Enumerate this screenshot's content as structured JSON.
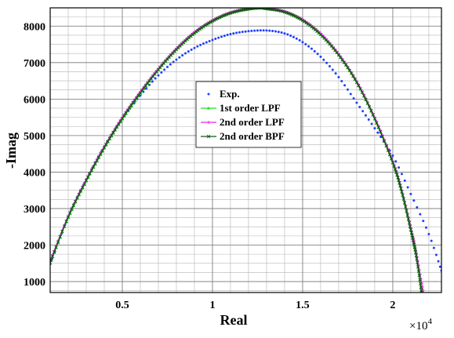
{
  "chart_data": {
    "type": "line",
    "xlabel": "Real",
    "ylabel": "-Imag",
    "x_multiplier_label": "×10",
    "x_multiplier_exponent": "4",
    "xlim": [
      1000,
      22700
    ],
    "ylim": [
      700,
      8500
    ],
    "x_ticks": [
      5000,
      10000,
      15000,
      20000
    ],
    "x_tick_labels": [
      "0.5",
      "1",
      "1.5",
      "2"
    ],
    "x_minor_step": 1000,
    "y_ticks": [
      1000,
      2000,
      3000,
      4000,
      5000,
      6000,
      7000,
      8000
    ],
    "y_tick_labels": [
      "1000",
      "2000",
      "3000",
      "4000",
      "5000",
      "6000",
      "7000",
      "8000"
    ],
    "y_minor_step": 250,
    "grid": true,
    "legend_position": "center",
    "series": [
      {
        "name": "Exp.",
        "color": "#1f3fff",
        "marker": "dot",
        "x": [
          1000,
          2000,
          3000,
          4000,
          5000,
          6000,
          7000,
          8000,
          9000,
          10000,
          11000,
          12000,
          13000,
          14000,
          15000,
          16000,
          17000,
          18000,
          19000,
          20000,
          21000,
          22000,
          22700
        ],
        "y": [
          1480,
          2770,
          3800,
          4700,
          5460,
          6100,
          6650,
          7080,
          7400,
          7620,
          7780,
          7860,
          7880,
          7800,
          7560,
          7160,
          6600,
          5900,
          5200,
          4450,
          3400,
          2300,
          1300
        ]
      },
      {
        "name": "1st order LPF",
        "color": "#22dd22",
        "marker": "triangle",
        "x": [
          1000,
          2000,
          3000,
          4000,
          5000,
          6000,
          7000,
          8000,
          9000,
          10000,
          11000,
          12000,
          12700,
          13000,
          14000,
          15000,
          16000,
          17000,
          18000,
          19000,
          20000,
          20500,
          21000,
          21300,
          21600
        ],
        "y": [
          1500,
          2750,
          3750,
          4650,
          5450,
          6150,
          6800,
          7350,
          7800,
          8130,
          8350,
          8460,
          8490,
          8470,
          8380,
          8150,
          7760,
          7200,
          6450,
          5450,
          4250,
          3450,
          2400,
          1700,
          700
        ]
      },
      {
        "name": "2nd order LPF",
        "color": "#ee22ee",
        "marker": "plus",
        "x": [
          1000,
          2000,
          3000,
          4000,
          5000,
          6000,
          7000,
          8000,
          9000,
          10000,
          11000,
          12000,
          12700,
          13000,
          14000,
          15000,
          16000,
          17000,
          18000,
          19000,
          20000,
          20500,
          21000,
          21300,
          21700
        ],
        "y": [
          1560,
          2800,
          3800,
          4700,
          5500,
          6200,
          6830,
          7380,
          7830,
          8150,
          8370,
          8480,
          8510,
          8490,
          8400,
          8170,
          7790,
          7230,
          6490,
          5500,
          4300,
          3500,
          2470,
          1780,
          700
        ]
      },
      {
        "name": "2nd order BPF",
        "color": "#0b5a0b",
        "marker": "star",
        "x": [
          1000,
          2000,
          3000,
          4000,
          5000,
          6000,
          7000,
          8000,
          9000,
          10000,
          11000,
          12000,
          12700,
          13000,
          14000,
          15000,
          16000,
          17000,
          18000,
          19000,
          20000,
          20500,
          21000,
          21300,
          21600
        ],
        "y": [
          1520,
          2770,
          3770,
          4670,
          5470,
          6170,
          6810,
          7360,
          7810,
          8140,
          8360,
          8470,
          8500,
          8480,
          8390,
          8160,
          7770,
          7210,
          6460,
          5460,
          4260,
          3460,
          2420,
          1720,
          700
        ]
      }
    ]
  }
}
